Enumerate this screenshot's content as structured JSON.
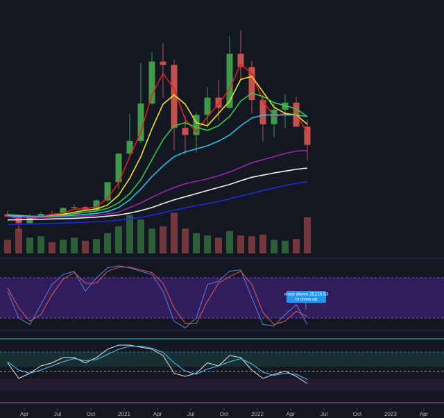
{
  "chart_data": [
    {
      "type": "candlestick",
      "x": [
        "2020-02",
        "2020-03",
        "2020-04",
        "2020-05",
        "2020-06",
        "2020-07",
        "2020-08",
        "2020-09",
        "2020-10",
        "2020-11",
        "2020-12",
        "2021-01",
        "2021-02",
        "2021-03",
        "2021-04",
        "2021-05",
        "2021-06",
        "2021-07",
        "2021-08",
        "2021-09",
        "2021-10",
        "2021-11",
        "2021-12",
        "2022-01",
        "2022-02",
        "2022-03",
        "2022-04",
        "2022-05"
      ],
      "open": [
        9350,
        8550,
        6450,
        8650,
        9450,
        9150,
        11350,
        11650,
        10780,
        13800,
        19700,
        28950,
        33100,
        45200,
        58800,
        57700,
        37300,
        35000,
        41500,
        47100,
        43800,
        61300,
        57000,
        46300,
        38500,
        43200,
        45500,
        37700
      ],
      "high": [
        10500,
        9200,
        9450,
        10100,
        10400,
        11450,
        12500,
        12100,
        14100,
        19500,
        29300,
        41900,
        58300,
        61800,
        64800,
        59500,
        41300,
        42400,
        50500,
        52900,
        67000,
        69000,
        59000,
        48000,
        45800,
        48200,
        47400,
        40000
      ],
      "low": [
        8500,
        3800,
        6150,
        8100,
        8900,
        8950,
        11100,
        9850,
        10400,
        13200,
        17600,
        28100,
        32300,
        44900,
        47000,
        30000,
        28800,
        29300,
        37400,
        39600,
        43300,
        53300,
        42000,
        33000,
        34300,
        37200,
        37700,
        26700
      ],
      "close": [
        8550,
        6450,
        8650,
        9450,
        9150,
        11350,
        11650,
        10780,
        13800,
        19700,
        28950,
        33100,
        45200,
        58800,
        57700,
        37300,
        35000,
        41500,
        47100,
        43800,
        61300,
        57000,
        46300,
        38500,
        43200,
        45500,
        37700,
        31800
      ],
      "volume": [
        30,
        55,
        35,
        38,
        25,
        30,
        35,
        28,
        32,
        45,
        60,
        85,
        75,
        55,
        60,
        90,
        55,
        45,
        40,
        35,
        50,
        40,
        38,
        42,
        30,
        28,
        32,
        80
      ],
      "ylim": [
        0,
        72000
      ],
      "vlim": [
        0,
        100
      ],
      "xlim": [
        "2020-01",
        "2023-05"
      ],
      "xticks": [
        {
          "value": "2020-04",
          "label": "Apr"
        },
        {
          "value": "2020-07",
          "label": "Jul"
        },
        {
          "value": "2020-10",
          "label": "Oct"
        },
        {
          "value": "2021-01",
          "label": "2021"
        },
        {
          "value": "2021-04",
          "label": "Apr"
        },
        {
          "value": "2021-07",
          "label": "Jul"
        },
        {
          "value": "2021-10",
          "label": "Oct"
        },
        {
          "value": "2022-01",
          "label": "2022"
        },
        {
          "value": "2022-04",
          "label": "Apr"
        },
        {
          "value": "2022-07",
          "label": "Jul"
        },
        {
          "value": "2022-10",
          "label": "Oct"
        },
        {
          "value": "2023-01",
          "label": "2023"
        },
        {
          "value": "2023-04",
          "label": "Apr"
        }
      ],
      "up_color": "#3f9b4a",
      "down_color": "#c4524f",
      "series": [
        {
          "color": "#e01e1e",
          "values": [
            8800,
            7800,
            7500,
            8600,
            9300,
            9700,
            11000,
            11000,
            11800,
            14500,
            19500,
            28000,
            36000,
            48000,
            55000,
            50000,
            40000,
            36000,
            41000,
            45000,
            50000,
            58000,
            55000,
            46000,
            41000,
            42000,
            41500,
            36000
          ]
        },
        {
          "color": "#f2e41c",
          "values": [
            9000,
            8600,
            8200,
            8400,
            8900,
            9300,
            10000,
            10600,
            11000,
            12300,
            15500,
            21000,
            28000,
            37000,
            45000,
            48000,
            45000,
            39000,
            38000,
            42000,
            46000,
            53000,
            54000,
            49000,
            44000,
            42000,
            41500,
            38500
          ]
        },
        {
          "color": "#2ecc40",
          "values": [
            9200,
            9000,
            8700,
            8600,
            8800,
            9000,
            9500,
            10000,
            10400,
            11200,
            13000,
            16000,
            20500,
            27000,
            33500,
            38000,
            39000,
            37500,
            36500,
            38000,
            41000,
            46000,
            48500,
            47500,
            45500,
            44500,
            43500,
            41000
          ]
        },
        {
          "color": "#26c6da",
          "values": [
            9000,
            8900,
            8700,
            8600,
            8600,
            8700,
            9000,
            9300,
            9600,
            10200,
            11500,
            14000,
            17500,
            21500,
            25000,
            28000,
            29500,
            30500,
            31500,
            33000,
            35000,
            38000,
            40500,
            41500,
            41500,
            41500,
            41500,
            41000
          ]
        },
        {
          "color": "#9c27b0",
          "values": [
            8500,
            8400,
            8300,
            8300,
            8350,
            8450,
            8600,
            8800,
            9000,
            9400,
            10000,
            11500,
            13000,
            14800,
            16500,
            18000,
            19200,
            20000,
            20800,
            21800,
            23000,
            24500,
            26000,
            27000,
            28000,
            29000,
            29800,
            30000
          ]
        },
        {
          "color": "#f0f0f0",
          "values": [
            7500,
            7550,
            7600,
            7700,
            7800,
            7900,
            8000,
            8200,
            8400,
            8700,
            9100,
            9700,
            10500,
            11500,
            12800,
            14000,
            15000,
            16000,
            17000,
            18000,
            19000,
            20200,
            21300,
            22000,
            22700,
            23300,
            23900,
            24300
          ]
        },
        {
          "color": "#1e2bd6",
          "values": [
            6000,
            6100,
            6150,
            6250,
            6350,
            6450,
            6600,
            6750,
            6900,
            7100,
            7400,
            7800,
            8300,
            9000,
            9800,
            10600,
            11400,
            12100,
            12800,
            13500,
            14300,
            15200,
            16100,
            17000,
            17800,
            18600,
            19300,
            19900
          ]
        }
      ]
    },
    {
      "type": "line",
      "ylim": [
        0,
        100
      ],
      "annotation": [
        "close above 35219.63",
        "to cross up"
      ],
      "series": [
        {
          "color": "#5b7fe0",
          "values": [
            60,
            20,
            10,
            40,
            70,
            85,
            90,
            60,
            80,
            95,
            98,
            95,
            90,
            85,
            60,
            15,
            5,
            20,
            70,
            75,
            90,
            92,
            50,
            10,
            8,
            25,
            40,
            10
          ]
        },
        {
          "color": "#e05b5b",
          "values": [
            65,
            35,
            15,
            25,
            55,
            78,
            88,
            72,
            72,
            90,
            96,
            96,
            92,
            88,
            72,
            35,
            12,
            12,
            45,
            72,
            82,
            90,
            70,
            28,
            10,
            15,
            30,
            22
          ]
        }
      ]
    },
    {
      "type": "line",
      "ylim": [
        10,
        90
      ],
      "series": [
        {
          "color": "#e8e8e8",
          "values": [
            55,
            40,
            45,
            52,
            55,
            60,
            60,
            55,
            60,
            68,
            72,
            72,
            70,
            68,
            62,
            45,
            42,
            45,
            55,
            52,
            62,
            60,
            48,
            40,
            44,
            47,
            42,
            35
          ]
        },
        {
          "color": "#4fc3f7",
          "values": [
            56,
            48,
            45,
            48,
            52,
            56,
            59,
            57,
            58,
            63,
            68,
            71,
            71,
            69,
            65,
            55,
            47,
            44,
            49,
            52,
            56,
            59,
            54,
            46,
            43,
            45,
            44,
            39
          ]
        }
      ]
    }
  ]
}
